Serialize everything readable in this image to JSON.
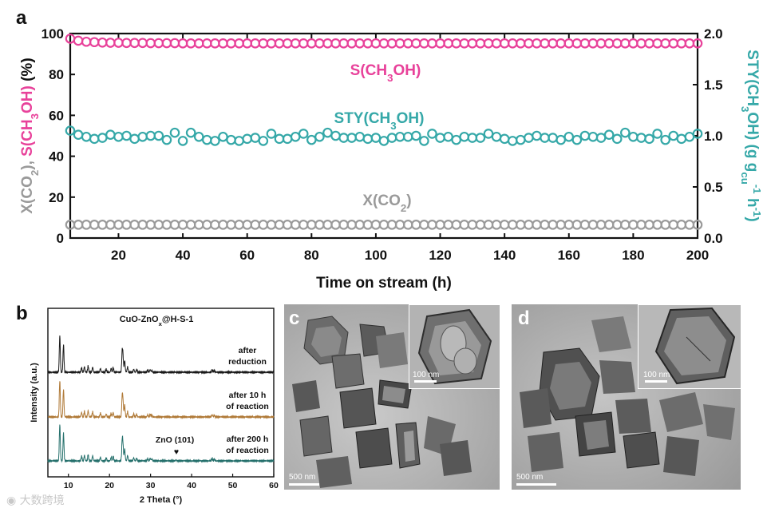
{
  "panel_a_label": "a",
  "panel_b_label": "b",
  "panel_c_label": "c",
  "panel_d_label": "d",
  "colors": {
    "selectivity": "#e8419a",
    "sty": "#35a8a8",
    "conversion": "#9a9a9a",
    "xrd_after_reduction": "#1a1a1a",
    "xrd_after_10h": "#b07a38",
    "xrd_after_200h": "#25706c"
  },
  "chart_data": [
    {
      "type": "scatter",
      "panel": "a",
      "xlabel": "Time on stream (h)",
      "ylabel_left_parts": [
        "X(CO",
        "2",
        "), ",
        "S(CH",
        "3",
        "OH)",
        " (%)"
      ],
      "ylabel_right_parts": [
        "STY(CH",
        "3",
        "OH) (g g",
        "cu",
        "-1",
        " h",
        "-1",
        ")"
      ],
      "xlim": [
        5,
        200
      ],
      "ylim_left": [
        0,
        100
      ],
      "ylim_right": [
        0,
        2.0
      ],
      "x_ticks": [
        20,
        40,
        60,
        80,
        100,
        120,
        140,
        160,
        180,
        200
      ],
      "y_ticks_left": [
        0,
        20,
        40,
        60,
        80,
        100
      ],
      "y_ticks_right": [
        "0.0",
        "0.5",
        "1.0",
        "1.5",
        "2.0"
      ],
      "series": [
        {
          "name": "S(CH3OH)",
          "label_parts": [
            "S(CH",
            "3",
            "OH)"
          ],
          "axis": "left",
          "x_start": 5,
          "x_step": 2.5,
          "count": 79,
          "values": [
            97.5,
            96.5,
            96.0,
            95.8,
            95.6,
            95.5,
            95.5,
            95.4,
            95.4,
            95.4,
            95.3,
            95.3,
            95.3,
            95.3,
            95.2,
            95.2,
            95.2,
            95.2,
            95.2,
            95.2,
            95.2,
            95.2,
            95.2,
            95.2,
            95.2,
            95.2,
            95.2,
            95.2,
            95.2,
            95.2,
            95.2,
            95.2,
            95.2,
            95.2,
            95.2,
            95.2,
            95.2,
            95.2,
            95.2,
            95.2,
            95.2,
            95.2,
            95.2,
            95.2,
            95.2,
            95.2,
            95.2,
            95.2,
            95.2,
            95.2,
            95.2,
            95.2,
            95.2,
            95.2,
            95.2,
            95.2,
            95.2,
            95.2,
            95.2,
            95.2,
            95.2,
            95.2,
            95.2,
            95.2,
            95.2,
            95.2,
            95.2,
            95.2,
            95.2,
            95.2,
            95.2,
            95.2,
            95.2,
            95.2,
            95.2,
            95.2,
            95.2,
            95.2,
            95.2
          ]
        },
        {
          "name": "STY(CH3OH)",
          "label_parts": [
            "STY(CH",
            "3",
            "OH)"
          ],
          "axis": "right",
          "x_start": 5,
          "x_step": 2.5,
          "count": 79,
          "values": [
            1.05,
            1.01,
            0.99,
            0.97,
            0.98,
            1.01,
            0.99,
            1.0,
            0.97,
            0.99,
            1.0,
            1.0,
            0.96,
            1.03,
            0.95,
            1.03,
            0.99,
            0.96,
            0.95,
            0.99,
            0.96,
            0.95,
            0.97,
            0.98,
            0.95,
            1.02,
            0.97,
            0.97,
            0.99,
            1.02,
            0.96,
            0.99,
            1.03,
            1.0,
            0.98,
            0.98,
            0.99,
            0.97,
            0.98,
            0.95,
            0.98,
            0.99,
            0.99,
            1.0,
            0.95,
            1.02,
            0.98,
            0.99,
            0.96,
            0.99,
            0.98,
            0.98,
            1.02,
            0.99,
            0.97,
            0.95,
            0.96,
            0.98,
            1.0,
            0.98,
            0.98,
            0.96,
            0.99,
            0.96,
            1.0,
            0.99,
            0.98,
            1.01,
            0.97,
            1.03,
            0.99,
            0.98,
            0.97,
            1.02,
            0.96,
            1.0,
            0.97,
            0.99,
            1.02
          ]
        },
        {
          "name": "X(CO2)",
          "label_parts": [
            "X(CO",
            "2",
            ")"
          ],
          "axis": "left",
          "x_start": 5,
          "x_step": 2.5,
          "count": 79,
          "values": [
            6.5,
            6.5,
            6.5,
            6.5,
            6.5,
            6.5,
            6.5,
            6.5,
            6.5,
            6.5,
            6.5,
            6.5,
            6.5,
            6.5,
            6.5,
            6.5,
            6.5,
            6.5,
            6.5,
            6.5,
            6.5,
            6.5,
            6.5,
            6.5,
            6.5,
            6.5,
            6.5,
            6.5,
            6.5,
            6.5,
            6.5,
            6.5,
            6.5,
            6.5,
            6.5,
            6.5,
            6.5,
            6.5,
            6.5,
            6.5,
            6.5,
            6.5,
            6.5,
            6.5,
            6.5,
            6.5,
            6.5,
            6.5,
            6.5,
            6.5,
            6.5,
            6.5,
            6.5,
            6.5,
            6.5,
            6.5,
            6.5,
            6.5,
            6.5,
            6.5,
            6.5,
            6.5,
            6.5,
            6.5,
            6.5,
            6.5,
            6.5,
            6.5,
            6.5,
            6.5,
            6.5,
            6.5,
            6.5,
            6.5,
            6.5,
            6.5,
            6.5,
            6.5,
            6.5
          ]
        }
      ]
    },
    {
      "type": "line",
      "panel": "b",
      "title_parts": [
        "CuO-ZnO",
        "x",
        "@H-S-1"
      ],
      "xlabel": "2 Theta (°)",
      "ylabel": "Intensity (a.u.)",
      "xlim": [
        5,
        60
      ],
      "x_ticks": [
        10,
        20,
        30,
        40,
        50,
        60
      ],
      "series": [
        {
          "name": "after reduction",
          "label_lines": [
            "after",
            "reduction"
          ]
        },
        {
          "name": "after 10 h of reaction",
          "label_lines": [
            "after 10 h",
            "of reaction"
          ]
        },
        {
          "name": "after 200 h of reaction",
          "label_lines": [
            "after 200 h",
            "of reaction"
          ]
        }
      ],
      "peaks_2theta": [
        7.9,
        8.8,
        13.2,
        13.9,
        14.8,
        15.9,
        17.8,
        19.2,
        20.4,
        20.9,
        23.1,
        23.3,
        23.7,
        24.4,
        25.9,
        26.6,
        29.3,
        29.9,
        30.3,
        36.2,
        45.0,
        45.5
      ],
      "peak_rel_heights": [
        1.0,
        0.75,
        0.12,
        0.15,
        0.17,
        0.14,
        0.1,
        0.08,
        0.1,
        0.12,
        0.55,
        0.35,
        0.32,
        0.15,
        0.08,
        0.07,
        0.06,
        0.07,
        0.05,
        0.03,
        0.06,
        0.05
      ],
      "annotation": {
        "text": "ZnO (101)",
        "x": 36.3,
        "marker": "♥"
      }
    }
  ],
  "tem_c": {
    "scale_main": "500 nm",
    "scale_inset": "100 nm"
  },
  "tem_d": {
    "scale_main": "500 nm",
    "scale_inset": "100 nm"
  },
  "watermark": {
    "icon": "camera-icon",
    "text": "大数跨境"
  }
}
